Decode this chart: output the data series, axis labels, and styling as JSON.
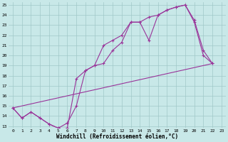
{
  "bg_color": "#c8e8e8",
  "grid_color": "#a0c8c8",
  "line_color": "#993399",
  "xlabel": "Windchill (Refroidissement éolien,°C)",
  "xlim": [
    -0.5,
    23.5
  ],
  "ylim": [
    12.8,
    25.3
  ],
  "yticks": [
    13,
    14,
    15,
    16,
    17,
    18,
    19,
    20,
    21,
    22,
    23,
    24,
    25
  ],
  "xticks": [
    0,
    1,
    2,
    3,
    4,
    5,
    6,
    7,
    8,
    9,
    10,
    11,
    12,
    13,
    14,
    15,
    16,
    17,
    18,
    19,
    20,
    21,
    22,
    23
  ],
  "line1_x": [
    0,
    1,
    2,
    3,
    4,
    5,
    6,
    7,
    8,
    9,
    10,
    11,
    12,
    13,
    14,
    15,
    16,
    17,
    18,
    19,
    20,
    21,
    22
  ],
  "line1_y": [
    14.8,
    13.8,
    14.4,
    13.8,
    13.2,
    12.8,
    12.8,
    17.7,
    18.5,
    19.0,
    21.0,
    21.5,
    22.0,
    23.3,
    23.3,
    21.5,
    24.0,
    24.5,
    24.8,
    25.0,
    23.3,
    20.0,
    19.2
  ],
  "line2_x": [
    0,
    1,
    2,
    3,
    4,
    5,
    6,
    7,
    8,
    9,
    10,
    11,
    12,
    13,
    14,
    15,
    16,
    17,
    18,
    19,
    20,
    21,
    22
  ],
  "line2_y": [
    14.8,
    13.8,
    14.4,
    13.8,
    13.2,
    12.8,
    13.3,
    15.0,
    18.5,
    19.0,
    19.2,
    20.5,
    21.3,
    23.3,
    23.3,
    23.8,
    24.0,
    24.5,
    24.8,
    25.0,
    23.5,
    20.5,
    19.2
  ],
  "line3_x": [
    0,
    22
  ],
  "line3_y": [
    14.8,
    19.2
  ]
}
